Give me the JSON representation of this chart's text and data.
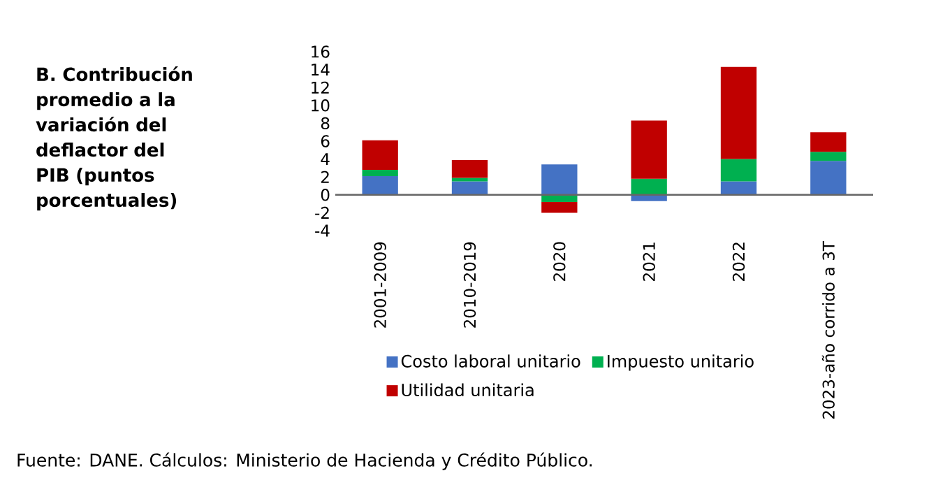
{
  "chart_data": {
    "type": "bar",
    "stacked": true,
    "title": "B. Contribución promedio a la variación del deflactor del PIB (puntos porcentuales)",
    "categories": [
      "2001-2009",
      "2010-2019",
      "2020",
      "2021",
      "2022",
      "2023-año corrido a 3T"
    ],
    "series": [
      {
        "name": "Costo laboral unitario",
        "color": "#4472c4",
        "values": [
          2.1,
          1.5,
          3.4,
          -0.7,
          1.5,
          3.8
        ]
      },
      {
        "name": "Impuesto unitario",
        "color": "#00b050",
        "values": [
          0.7,
          0.4,
          -0.8,
          1.8,
          2.5,
          1.0
        ]
      },
      {
        "name": "Utilidad unitaria",
        "color": "#c00000",
        "values": [
          3.3,
          2.0,
          -1.2,
          6.5,
          10.3,
          2.2
        ]
      }
    ],
    "ylim": [
      -4,
      16
    ],
    "yticks": [
      -4,
      -2,
      0,
      2,
      4,
      6,
      8,
      10,
      12,
      14,
      16
    ],
    "legend": "bottom",
    "annotations": [
      "Fuente: DANE. Cálculos: Ministerio de Hacienda y Crédito Público."
    ]
  }
}
